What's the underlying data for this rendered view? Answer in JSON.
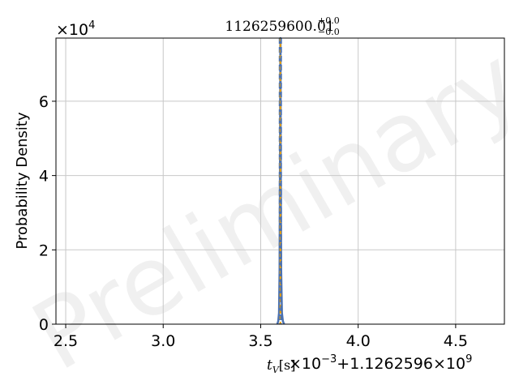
{
  "chart_data": {
    "type": "line",
    "title": {
      "value": "1126259600.01",
      "sup": "+0.0",
      "sub": "−0.0"
    },
    "xlabel": {
      "symbol": "t",
      "subscript": "V",
      "unit": "[s]"
    },
    "ylabel": "Probability Density",
    "x_offset_text": "10−3+1.1262596×109",
    "x_offset_parts": {
      "scale": "×10",
      "scale_exp": "−3",
      "offset_mantissa": "+1.1262596",
      "offset_times": "×10",
      "offset_exp": "9"
    },
    "y_scale_text": "×104",
    "y_scale_parts": {
      "base": "×10",
      "exp": "4"
    },
    "xlim": [
      2.45,
      4.75
    ],
    "ylim": [
      0,
      77000
    ],
    "xticks": [
      2.5,
      3.0,
      3.5,
      4.0,
      4.5
    ],
    "xtick_labels": [
      "2.5",
      "3.0",
      "3.5",
      "4.0",
      "4.5"
    ],
    "yticks": [
      0,
      20000,
      40000,
      60000
    ],
    "ytick_labels": [
      "0",
      "2",
      "4",
      "6"
    ],
    "grid": true,
    "series": [
      {
        "style": "solid",
        "color": "#4c72b0",
        "x": [
          3.585,
          3.59,
          3.594,
          3.597,
          3.599,
          3.6005,
          3.601,
          3.6015,
          3.602,
          3.603,
          3.605,
          3.609,
          3.614,
          3.62
        ],
        "y": [
          0,
          800,
          3000,
          15000,
          45000,
          75000,
          77000,
          77000,
          75000,
          45000,
          15000,
          3000,
          800,
          0
        ]
      }
    ],
    "vlines": [
      {
        "x": 3.597,
        "style": "dashed",
        "color": "#4c72b0"
      },
      {
        "x": 3.601,
        "style": "solid",
        "color": "#f0a000"
      },
      {
        "x": 3.605,
        "style": "dashed",
        "color": "#4c72b0"
      }
    ],
    "watermark": "Preliminary"
  }
}
